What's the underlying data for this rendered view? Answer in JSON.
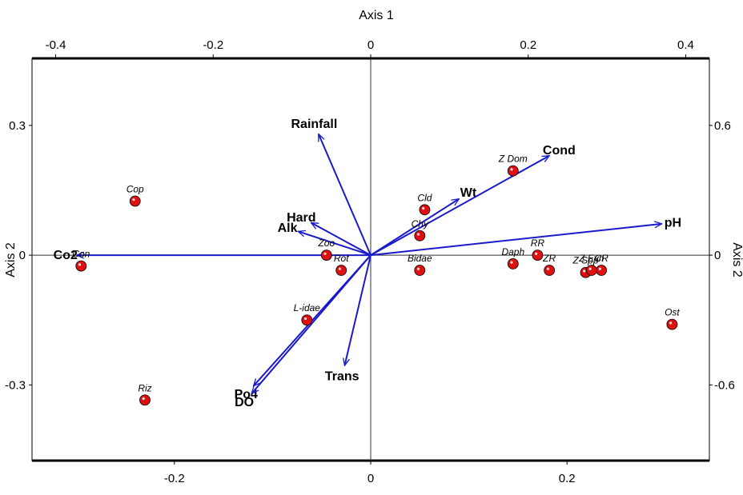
{
  "chart_data": {
    "type": "scatter",
    "subtype": "ordination biplot",
    "top_axis": {
      "label": "Axis 1",
      "range": [
        -0.43,
        0.43
      ],
      "ticks": [
        -0.4,
        -0.2,
        0,
        0.2,
        0.4
      ],
      "tick_labels": [
        "-0.4",
        "-0.2",
        "0",
        "0.2",
        "0.4"
      ]
    },
    "bottom_axis": {
      "label": "",
      "range": [
        -0.345,
        0.345
      ],
      "ticks": [
        -0.2,
        0,
        0.2
      ],
      "tick_labels": [
        "-0.2",
        "0",
        "0.2"
      ]
    },
    "left_axis": {
      "label": "Axis 2",
      "range": [
        -0.475,
        0.455
      ],
      "ticks": [
        0.3,
        0,
        -0.3
      ],
      "tick_labels": [
        "0.3",
        "0",
        "-0.3"
      ]
    },
    "right_axis": {
      "label": "Axis 2",
      "range": [
        -0.95,
        0.91
      ],
      "ticks": [
        0.6,
        0,
        -0.6
      ],
      "tick_labels": [
        "0.6",
        "0",
        "-0.6"
      ]
    },
    "grid": false,
    "zero_lines": true,
    "vector_color": "#1a1acc",
    "point_color": "#dd1111",
    "environmental_vectors": [
      {
        "name": "Rainfall",
        "axis1": -0.14,
        "axis2": 0.56
      },
      {
        "name": "Hard",
        "axis1": -0.16,
        "axis2": 0.15
      },
      {
        "name": "Alk",
        "axis1": -0.195,
        "axis2": 0.11
      },
      {
        "name": "Co2",
        "axis1": -0.79,
        "axis2": 0.0
      },
      {
        "name": "Wt",
        "axis1": 0.237,
        "axis2": 0.26
      },
      {
        "name": "Cond",
        "axis1": 0.48,
        "axis2": 0.46
      },
      {
        "name": "pH",
        "axis1": 0.782,
        "axis2": 0.145
      },
      {
        "name": "Trans",
        "axis1": -0.07,
        "axis2": -0.51
      },
      {
        "name": "Po4",
        "axis1": -0.315,
        "axis2": -0.605
      },
      {
        "name": "DO",
        "axis1": -0.32,
        "axis2": -0.64
      }
    ],
    "species_points": [
      {
        "name": "Cop",
        "axis1": -0.24,
        "axis2": 0.125
      },
      {
        "name": "Con",
        "axis1": -0.295,
        "axis2": -0.025
      },
      {
        "name": "Riz",
        "axis1": -0.23,
        "axis2": -0.335
      },
      {
        "name": "Zoo",
        "axis1": -0.045,
        "axis2": 0.0
      },
      {
        "name": "Rot",
        "axis1": -0.03,
        "axis2": -0.035
      },
      {
        "name": "L-idae",
        "axis1": -0.065,
        "axis2": -0.15
      },
      {
        "name": "Cld",
        "axis1": 0.055,
        "axis2": 0.105
      },
      {
        "name": "Chy",
        "axis1": 0.05,
        "axis2": 0.045
      },
      {
        "name": "Bidae",
        "axis1": 0.05,
        "axis2": -0.035
      },
      {
        "name": "Z Dom",
        "axis1": 0.145,
        "axis2": 0.195
      },
      {
        "name": "RR",
        "axis1": 0.17,
        "axis2": 0.0
      },
      {
        "name": "Daph",
        "axis1": 0.145,
        "axis2": -0.02
      },
      {
        "name": "ZR",
        "axis1": 0.182,
        "axis2": -0.035
      },
      {
        "name": "Z Spp",
        "axis1": 0.219,
        "axis2": -0.04
      },
      {
        "name": "CR",
        "axis1": 0.235,
        "axis2": -0.035
      },
      {
        "name": "Z Evn",
        "axis1": 0.225,
        "axis2": -0.035
      },
      {
        "name": "Ost",
        "axis1": 0.307,
        "axis2": -0.16
      }
    ]
  }
}
